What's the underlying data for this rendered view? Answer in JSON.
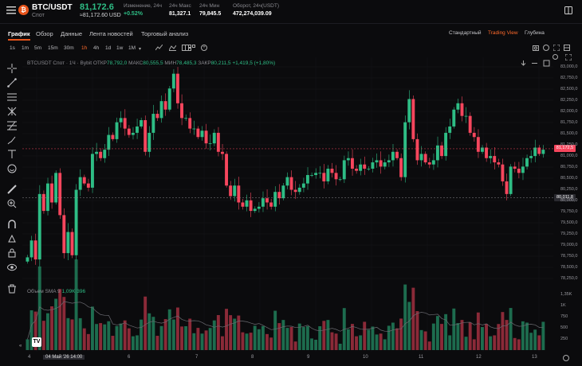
{
  "header": {
    "pair": "BTC/USDT",
    "pair_type": "Спот",
    "price": "81,172.6",
    "price_usd": "≈81,172.60 USD",
    "stats": [
      {
        "label": "Изменение, 24ч",
        "value": "+0.52%"
      },
      {
        "label": "24ч Макс",
        "value": "81,327.1"
      },
      {
        "label": "24ч Мин",
        "value": "79,845.5"
      },
      {
        "label": "Оборот, 24ч(USDT)",
        "value": "472,274,039.09"
      }
    ]
  },
  "tabs": [
    "График",
    "Обзор",
    "Данные",
    "Лента новостей",
    "Торговый анализ"
  ],
  "view_tabs": [
    "Стандартный",
    "Trading View",
    "Глубина"
  ],
  "timeframes": [
    "1s",
    "1m",
    "5m",
    "15m",
    "30m",
    "1h",
    "4h",
    "1d",
    "1w",
    "1M"
  ],
  "selected_timeframe": "1h",
  "ohlc": {
    "symbol": "BTCUSDT Спот · 1Ч · Bybit",
    "open_label": "ОТКР",
    "open": "78,792,0",
    "high_label": "МАКС",
    "high": "80,555,5",
    "low_label": "МИН",
    "low": "78,485,3",
    "close_label": "ЗАКР",
    "close": "80,211,5",
    "change": "+1,419,5 (+1,80%)"
  },
  "volume_legend": {
    "label": "Объем SMA 9",
    "v1": "1,09K",
    "v2": "396"
  },
  "y_axis": [
    "83,000,0",
    "82,750,0",
    "82,500,0",
    "82,250,0",
    "82,000,0",
    "81,750,0",
    "81,500,0",
    "81,250,0",
    "81,000,0",
    "80,750,0",
    "80,500,0",
    "80,250,0",
    "80,000,0",
    "79,750,0",
    "79,500,0",
    "79,250,0",
    "79,000,0",
    "78,750,0",
    "78,500,0",
    "78,250,0"
  ],
  "price_tags": {
    "current": "81,172,5",
    "marker": "80,011,8"
  },
  "vol_axis": [
    "1,35K",
    "1K",
    "750",
    "500",
    "250"
  ],
  "x_axis": [
    "4",
    "04 Май '26  14:00",
    "6",
    "7",
    "8",
    "9",
    "10",
    "11",
    "12",
    "13"
  ],
  "colors": {
    "up": "#2ebd85",
    "down": "#f6465d",
    "accent": "#ff6a2b"
  },
  "chart_data": {
    "type": "candlestick",
    "symbol": "BTCUSDT",
    "interval": "1h",
    "ylim": [
      78250,
      83000
    ],
    "closes": [
      78600,
      79000,
      78550,
      80100,
      79700,
      80350,
      79900,
      80600,
      79600,
      78700,
      79200,
      78650,
      80200,
      80500,
      80350,
      80250,
      81050,
      81100,
      80950,
      81150,
      81500,
      81400,
      81800,
      81900,
      81650,
      81500,
      81550,
      81700,
      81850,
      81100,
      81550,
      82000,
      81900,
      82300,
      82100,
      82600,
      82950,
      82250,
      81900,
      81900,
      81650,
      81650,
      81450,
      81600,
      81300,
      81300,
      81550,
      81100,
      81050,
      80300,
      80050,
      80300,
      79900,
      79800,
      79950,
      79700,
      79750,
      79800,
      80000,
      79900,
      79800,
      80150,
      80000,
      80300,
      80500,
      80200,
      80150,
      80250,
      80350,
      80550,
      80550,
      80600,
      80600,
      80400,
      80700,
      80600,
      80450,
      80450,
      80900,
      80950,
      80700,
      80650,
      80800,
      80700,
      80700,
      80850,
      80900,
      80750,
      80850,
      80900,
      81100,
      80950,
      80500,
      81800,
      82350,
      81400,
      80900,
      81050,
      80850,
      80800,
      80900,
      81250,
      81000,
      81550,
      81700,
      82100,
      82250,
      81950,
      81950,
      81550,
      81450,
      81100,
      81200,
      80950,
      81000,
      80850,
      80800,
      80400,
      80100,
      80750,
      80700,
      80600,
      80750,
      80950,
      81000,
      81200,
      81050,
      81150
    ]
  }
}
